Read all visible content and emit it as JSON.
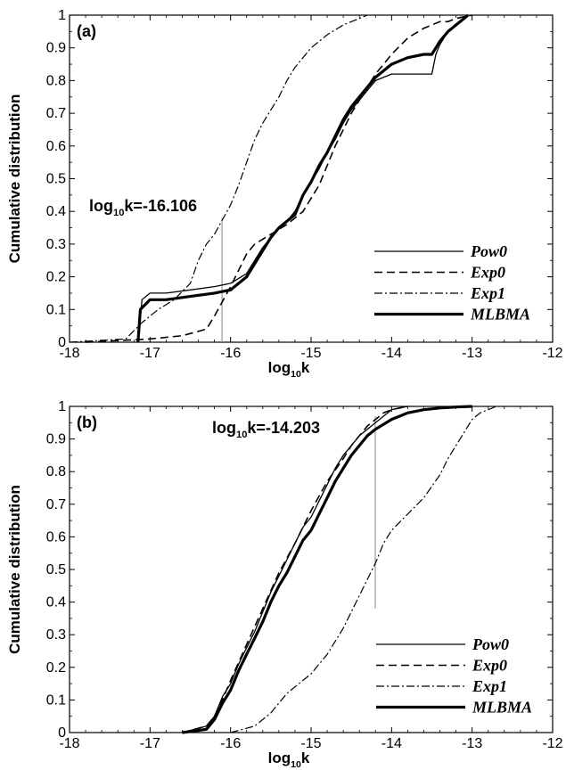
{
  "chart_data": [
    {
      "type": "line",
      "panel_label": "(a)",
      "xlabel_base": "log",
      "xlabel_sub": "10",
      "xlabel_tail": "k",
      "ylabel": "Cumulative distribution",
      "xlim": [
        -18,
        -12
      ],
      "ylim": [
        0,
        1
      ],
      "x_ticks": [
        "-18",
        "-17",
        "-16",
        "-15",
        "-14",
        "-13",
        "-12"
      ],
      "y_ticks": [
        "0",
        "0.1",
        "0.2",
        "0.3",
        "0.4",
        "0.5",
        "0.6",
        "0.7",
        "0.8",
        "0.9",
        "1"
      ],
      "grid": false,
      "legend_placement": "lower-right",
      "annotation": {
        "base": "log",
        "sub": "10",
        "tail": "k=-16.106",
        "x": -16.106,
        "y_range": [
          0,
          0.38
        ]
      },
      "series": [
        {
          "name": "Pow0",
          "style": "solid",
          "x": [
            -17.15,
            -17.1,
            -17.0,
            -16.8,
            -16.5,
            -16.2,
            -16.0,
            -15.8,
            -15.6,
            -15.5,
            -15.4,
            -15.3,
            -15.2,
            -15.1,
            -15.0,
            -14.9,
            -14.8,
            -14.7,
            -14.6,
            -14.5,
            -14.4,
            -14.3,
            -14.2,
            -14.0,
            -13.8,
            -13.6,
            -13.5,
            -13.45,
            -13.4,
            -13.3,
            -13.2,
            -13.1,
            -13.05
          ],
          "y": [
            0.0,
            0.13,
            0.15,
            0.15,
            0.16,
            0.17,
            0.18,
            0.21,
            0.29,
            0.32,
            0.35,
            0.37,
            0.4,
            0.45,
            0.49,
            0.53,
            0.58,
            0.62,
            0.67,
            0.71,
            0.74,
            0.77,
            0.8,
            0.82,
            0.82,
            0.82,
            0.82,
            0.88,
            0.91,
            0.95,
            0.97,
            0.99,
            1.0
          ]
        },
        {
          "name": "Exp0",
          "style": "dashed",
          "x": [
            -17.8,
            -17.0,
            -16.6,
            -16.3,
            -16.2,
            -16.0,
            -15.9,
            -15.8,
            -15.7,
            -15.5,
            -15.3,
            -15.1,
            -14.9,
            -14.7,
            -14.5,
            -14.3,
            -14.2,
            -14.0,
            -13.8,
            -13.6,
            -13.5,
            -13.4,
            -13.3,
            -13.2,
            -13.1,
            -13.0
          ],
          "y": [
            0.0,
            0.01,
            0.02,
            0.04,
            0.08,
            0.17,
            0.22,
            0.27,
            0.3,
            0.33,
            0.36,
            0.4,
            0.48,
            0.6,
            0.7,
            0.78,
            0.82,
            0.88,
            0.93,
            0.96,
            0.97,
            0.98,
            0.98,
            0.99,
            0.995,
            1.0
          ]
        },
        {
          "name": "Exp1",
          "style": "dashdot",
          "x": [
            -18.0,
            -17.3,
            -17.1,
            -16.9,
            -16.7,
            -16.5,
            -16.4,
            -16.3,
            -16.2,
            -16.0,
            -15.9,
            -15.8,
            -15.7,
            -15.6,
            -15.5,
            -15.4,
            -15.3,
            -15.2,
            -15.0,
            -14.8,
            -14.6,
            -14.4,
            -14.3
          ],
          "y": [
            0.0,
            0.01,
            0.06,
            0.1,
            0.13,
            0.18,
            0.25,
            0.3,
            0.33,
            0.42,
            0.48,
            0.55,
            0.62,
            0.67,
            0.71,
            0.75,
            0.8,
            0.84,
            0.9,
            0.94,
            0.97,
            0.99,
            1.0
          ]
        },
        {
          "name": "MLBMA",
          "style": "thick",
          "x": [
            -17.15,
            -17.12,
            -17.0,
            -16.8,
            -16.5,
            -16.2,
            -16.0,
            -15.8,
            -15.6,
            -15.5,
            -15.4,
            -15.3,
            -15.2,
            -15.1,
            -15.0,
            -14.9,
            -14.8,
            -14.7,
            -14.6,
            -14.5,
            -14.4,
            -14.3,
            -14.2,
            -14.0,
            -13.8,
            -13.6,
            -13.5,
            -13.4,
            -13.3,
            -13.2,
            -13.1,
            -13.05
          ],
          "y": [
            0.0,
            0.1,
            0.13,
            0.13,
            0.14,
            0.15,
            0.16,
            0.2,
            0.28,
            0.32,
            0.35,
            0.37,
            0.39,
            0.45,
            0.49,
            0.54,
            0.58,
            0.63,
            0.68,
            0.72,
            0.75,
            0.78,
            0.81,
            0.85,
            0.87,
            0.88,
            0.88,
            0.92,
            0.95,
            0.97,
            0.99,
            1.0
          ]
        }
      ]
    },
    {
      "type": "line",
      "panel_label": "(b)",
      "xlabel_base": "log",
      "xlabel_sub": "10",
      "xlabel_tail": "k",
      "ylabel": "Cumulative distribution",
      "xlim": [
        -18,
        -12
      ],
      "ylim": [
        0,
        1
      ],
      "x_ticks": [
        "-18",
        "-17",
        "-16",
        "-15",
        "-14",
        "-13",
        "-12"
      ],
      "y_ticks": [
        "0",
        "0.1",
        "0.2",
        "0.3",
        "0.4",
        "0.5",
        "0.6",
        "0.7",
        "0.8",
        "0.9",
        "1"
      ],
      "grid": false,
      "legend_placement": "lower-right",
      "annotation": {
        "base": "log",
        "sub": "10",
        "tail": "k=-14.203",
        "x": -14.203,
        "y_range": [
          0.38,
          0.97
        ]
      },
      "series": [
        {
          "name": "Pow0",
          "style": "solid",
          "x": [
            -16.6,
            -16.3,
            -16.2,
            -16.1,
            -16.0,
            -15.9,
            -15.8,
            -15.7,
            -15.6,
            -15.5,
            -15.4,
            -15.3,
            -15.2,
            -15.1,
            -15.0,
            -14.9,
            -14.8,
            -14.7,
            -14.6,
            -14.5,
            -14.4,
            -14.3,
            -14.2,
            -14.1,
            -14.0,
            -13.9,
            -13.8
          ],
          "y": [
            0.0,
            0.02,
            0.05,
            0.11,
            0.15,
            0.21,
            0.26,
            0.31,
            0.37,
            0.43,
            0.48,
            0.53,
            0.58,
            0.63,
            0.66,
            0.71,
            0.76,
            0.81,
            0.85,
            0.88,
            0.91,
            0.93,
            0.95,
            0.97,
            0.99,
            0.995,
            1.0
          ]
        },
        {
          "name": "Exp0",
          "style": "dashed",
          "x": [
            -16.6,
            -16.3,
            -16.2,
            -16.1,
            -16.0,
            -15.8,
            -15.6,
            -15.4,
            -15.2,
            -15.0,
            -14.8,
            -14.6,
            -14.5,
            -14.4,
            -14.3,
            -14.2,
            -14.1,
            -14.0,
            -13.9,
            -13.8
          ],
          "y": [
            0.0,
            0.02,
            0.05,
            0.1,
            0.16,
            0.27,
            0.38,
            0.49,
            0.58,
            0.68,
            0.77,
            0.84,
            0.88,
            0.91,
            0.94,
            0.96,
            0.98,
            0.99,
            0.995,
            1.0
          ]
        },
        {
          "name": "Exp1",
          "style": "dashdot",
          "x": [
            -16.0,
            -15.7,
            -15.5,
            -15.3,
            -15.1,
            -15.0,
            -14.8,
            -14.6,
            -14.4,
            -14.3,
            -14.2,
            -14.1,
            -14.0,
            -13.8,
            -13.6,
            -13.4,
            -13.3,
            -13.2,
            -13.1,
            -13.0,
            -12.9,
            -12.8,
            -12.7
          ],
          "y": [
            0.0,
            0.02,
            0.06,
            0.12,
            0.16,
            0.18,
            0.24,
            0.32,
            0.42,
            0.47,
            0.52,
            0.58,
            0.62,
            0.67,
            0.72,
            0.79,
            0.84,
            0.88,
            0.92,
            0.96,
            0.98,
            0.99,
            1.0
          ]
        },
        {
          "name": "MLBMA",
          "style": "thick",
          "x": [
            -16.6,
            -16.3,
            -16.2,
            -16.1,
            -16.0,
            -15.9,
            -15.8,
            -15.7,
            -15.6,
            -15.5,
            -15.4,
            -15.3,
            -15.2,
            -15.1,
            -15.0,
            -14.9,
            -14.8,
            -14.7,
            -14.6,
            -14.5,
            -14.4,
            -14.3,
            -14.2,
            -14.0,
            -13.8,
            -13.6,
            -13.4,
            -13.2,
            -13.0
          ],
          "y": [
            0.0,
            0.01,
            0.04,
            0.09,
            0.13,
            0.19,
            0.24,
            0.29,
            0.34,
            0.4,
            0.45,
            0.49,
            0.54,
            0.59,
            0.62,
            0.67,
            0.72,
            0.77,
            0.81,
            0.85,
            0.88,
            0.91,
            0.93,
            0.96,
            0.98,
            0.99,
            0.995,
            0.998,
            1.0
          ]
        }
      ]
    }
  ]
}
